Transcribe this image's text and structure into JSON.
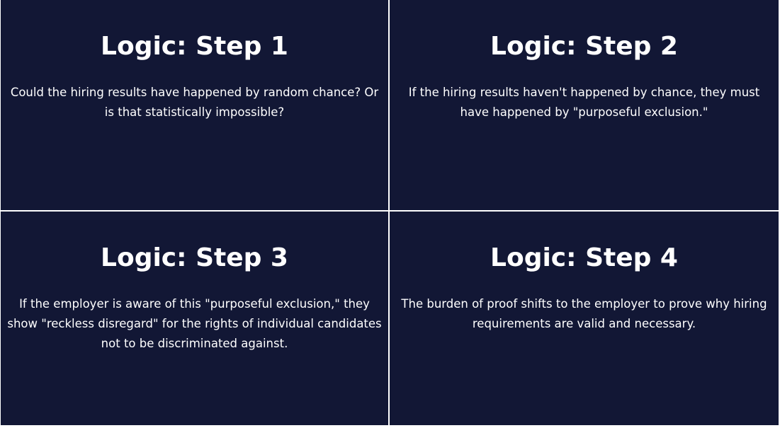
{
  "cards": [
    {
      "title": "Logic: Step 1",
      "body": "Could the hiring results have happened by random chance? Or is that statistically impossible?"
    },
    {
      "title": "Logic: Step 2",
      "body": "If the hiring results haven't happened by chance, they must have happened by \"purposeful exclusion.\""
    },
    {
      "title": "Logic: Step 3",
      "body": "If the employer is aware of this \"purposeful exclusion,\" they show \"reckless disregard\" for the rights of individual candidates not to be discriminated against."
    },
    {
      "title": "Logic: Step 4",
      "body": "The burden of proof shifts to the employer to prove why hiring requirements are valid and necessary."
    }
  ],
  "colors": {
    "card_background": "#121735",
    "divider": "#ffffff",
    "text": "#ffffff"
  }
}
